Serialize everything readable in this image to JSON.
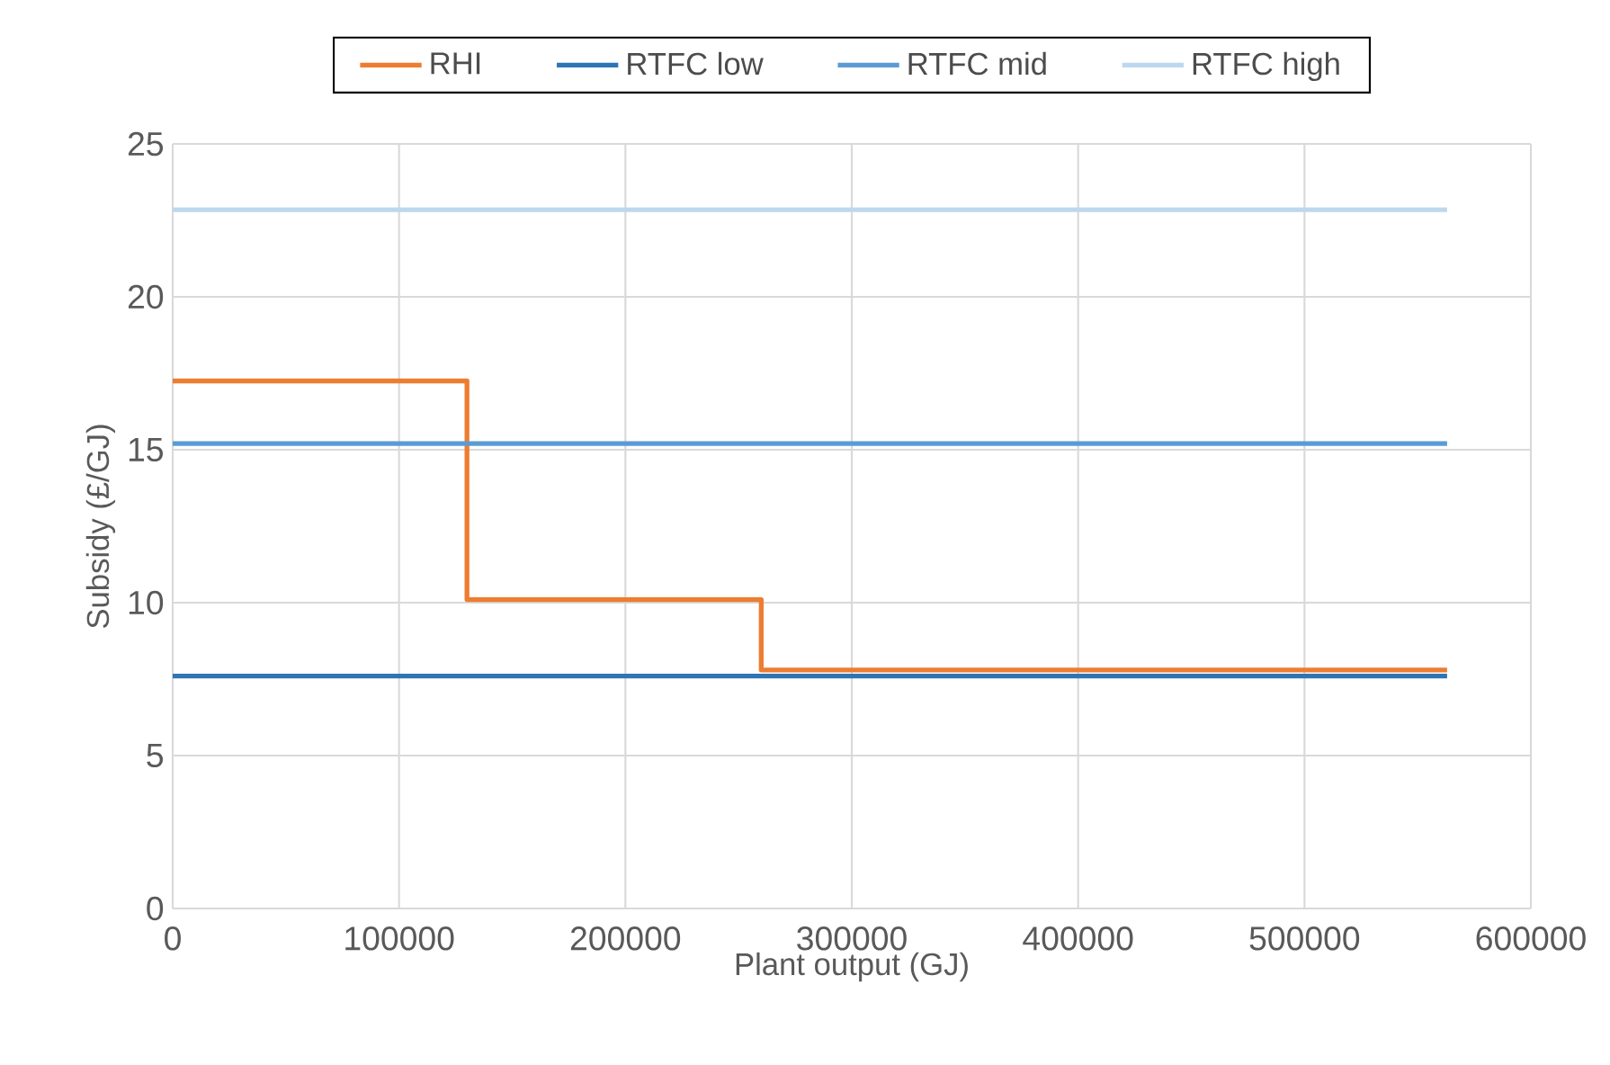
{
  "chart_data": {
    "type": "line",
    "xlabel": "Plant output (GJ)",
    "ylabel": "Subsidy (£/GJ)",
    "xlim": [
      0,
      600000
    ],
    "xticks": [
      0,
      100000,
      200000,
      300000,
      400000,
      500000,
      600000
    ],
    "ylim": [
      0,
      25
    ],
    "yticks": [
      0,
      5,
      10,
      15,
      20,
      25
    ],
    "grid": true,
    "legend": "top",
    "marker": "none",
    "line_style": "solid",
    "series": [
      {
        "name": "RHI",
        "type": "step",
        "color": "#ed7d31",
        "x": [
          0,
          130000,
          260000,
          563000
        ],
        "values": [
          17.25,
          10.1,
          7.8,
          7.8
        ]
      },
      {
        "name": "RTFC low",
        "color": "#2e75b6",
        "x": [
          0,
          563000
        ],
        "values": [
          7.6,
          7.6
        ]
      },
      {
        "name": "RTFC mid",
        "color": "#5b9bd5",
        "x": [
          0,
          563000
        ],
        "values": [
          15.2,
          15.2
        ]
      },
      {
        "name": "RTFC high",
        "color": "#bdd7ee",
        "x": [
          0,
          563000
        ],
        "values": [
          22.85,
          22.85
        ]
      }
    ]
  }
}
